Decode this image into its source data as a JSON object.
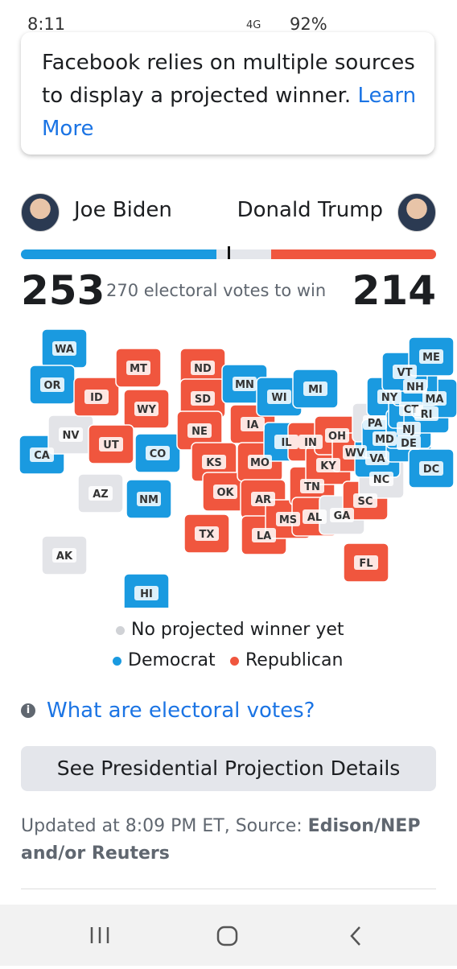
{
  "status_bar": {
    "time": "8:11",
    "network": "4G",
    "battery": "92%"
  },
  "notice": {
    "text": "Facebook relies on multiple sources to display a projected winner.",
    "link": "Learn More"
  },
  "candidates": {
    "left": {
      "name": "Joe Biden",
      "votes": 253,
      "color": "#1a9ae0"
    },
    "right": {
      "name": "Donald Trump",
      "votes": 214,
      "color": "#f0563e"
    },
    "threshold_text": "270 electoral votes to win"
  },
  "map": {
    "states": [
      {
        "label": "WA",
        "color": "#1a9ae0"
      },
      {
        "label": "OR",
        "color": "#1a9ae0"
      },
      {
        "label": "CA",
        "color": "#1a9ae0"
      },
      {
        "label": "NV",
        "color": "#e3e4e8"
      },
      {
        "label": "ID",
        "color": "#f0563e"
      },
      {
        "label": "MT",
        "color": "#f0563e"
      },
      {
        "label": "WY",
        "color": "#f0563e"
      },
      {
        "label": "UT",
        "color": "#f0563e"
      },
      {
        "label": "AZ",
        "color": "#e3e4e8"
      },
      {
        "label": "CO",
        "color": "#1a9ae0"
      },
      {
        "label": "NM",
        "color": "#1a9ae0"
      },
      {
        "label": "ND",
        "color": "#f0563e"
      },
      {
        "label": "SD",
        "color": "#f0563e"
      },
      {
        "label": "NE",
        "color": "#f0563e"
      },
      {
        "label": "KS",
        "color": "#f0563e"
      },
      {
        "label": "OK",
        "color": "#f0563e"
      },
      {
        "label": "TX",
        "color": "#f0563e"
      },
      {
        "label": "MN",
        "color": "#1a9ae0"
      },
      {
        "label": "IA",
        "color": "#f0563e"
      },
      {
        "label": "MO",
        "color": "#f0563e"
      },
      {
        "label": "AR",
        "color": "#f0563e"
      },
      {
        "label": "LA",
        "color": "#f0563e"
      },
      {
        "label": "WI",
        "color": "#1a9ae0"
      },
      {
        "label": "IL",
        "color": "#1a9ae0"
      },
      {
        "label": "MS",
        "color": "#f0563e"
      },
      {
        "label": "MI",
        "color": "#1a9ae0"
      },
      {
        "label": "IN",
        "color": "#f0563e"
      },
      {
        "label": "TN",
        "color": "#f0563e"
      },
      {
        "label": "AL",
        "color": "#f0563e"
      },
      {
        "label": "KY",
        "color": "#f0563e"
      },
      {
        "label": "OH",
        "color": "#f0563e"
      },
      {
        "label": "GA",
        "color": "#e3e4e8"
      },
      {
        "label": "FL",
        "color": "#f0563e"
      },
      {
        "label": "SC",
        "color": "#f0563e"
      },
      {
        "label": "NC",
        "color": "#e3e4e8"
      },
      {
        "label": "WV",
        "color": "#f0563e"
      },
      {
        "label": "VA",
        "color": "#1a9ae0"
      },
      {
        "label": "PA",
        "color": "#e3e4e8"
      },
      {
        "label": "NY",
        "color": "#1a9ae0"
      },
      {
        "label": "MD",
        "color": "#1a9ae0"
      },
      {
        "label": "DE",
        "color": "#1a9ae0"
      },
      {
        "label": "NJ",
        "color": "#1a9ae0"
      },
      {
        "label": "CT",
        "color": "#1a9ae0"
      },
      {
        "label": "RI",
        "color": "#1a9ae0"
      },
      {
        "label": "MA",
        "color": "#1a9ae0"
      },
      {
        "label": "NH",
        "color": "#1a9ae0"
      },
      {
        "label": "VT",
        "color": "#1a9ae0"
      },
      {
        "label": "ME",
        "color": "#1a9ae0"
      },
      {
        "label": "DC",
        "color": "#1a9ae0"
      },
      {
        "label": "AK",
        "color": "#e3e4e8"
      },
      {
        "label": "HI",
        "color": "#1a9ae0"
      }
    ],
    "legend": [
      {
        "name": "No projected winner yet",
        "color": "#d0d2d6"
      },
      {
        "name": "Democrat",
        "color": "#1a9ae0"
      },
      {
        "name": "Republican",
        "color": "#f0563e"
      }
    ]
  },
  "info_link": "What are electoral votes?",
  "button": "See Presidential Projection Details",
  "updated": {
    "text": "Updated at 8:09 PM ET, Source:",
    "source": "Edison/NEP and/or Reuters"
  }
}
